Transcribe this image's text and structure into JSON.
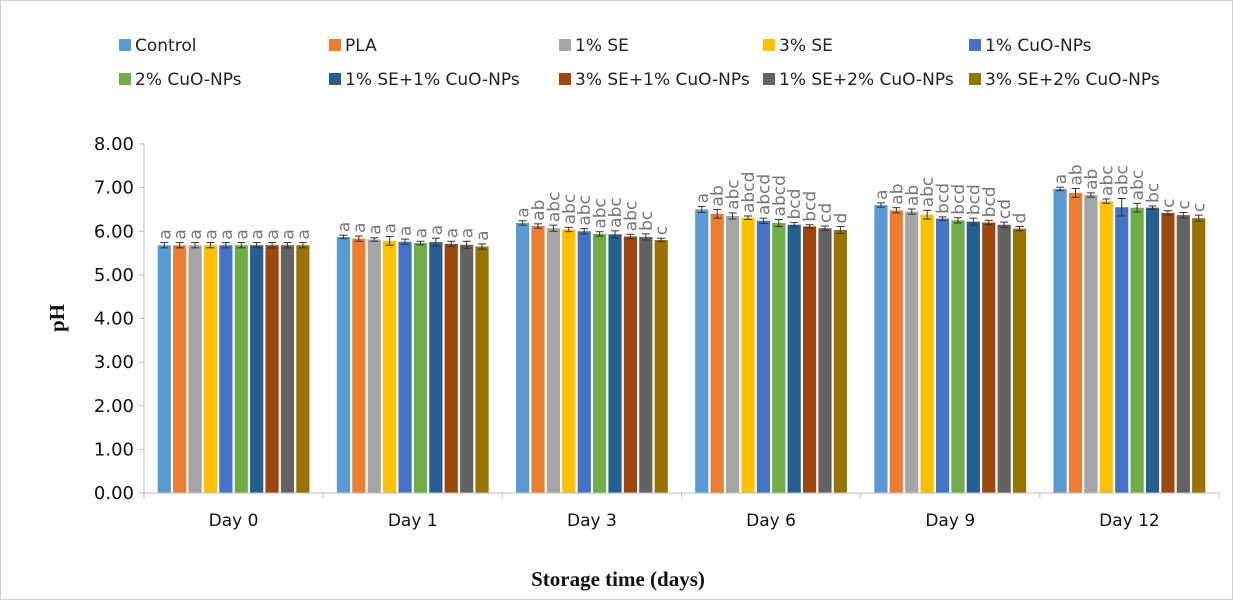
{
  "chart_data": {
    "type": "bar",
    "title": "",
    "xlabel": "Storage time (days)",
    "ylabel": "pH",
    "ylim": [
      0,
      8
    ],
    "yticks": [
      "0.00",
      "1.00",
      "2.00",
      "3.00",
      "4.00",
      "5.00",
      "6.00",
      "7.00",
      "8.00"
    ],
    "categories": [
      "Day 0",
      "Day 1",
      "Day 3",
      "Day 6",
      "Day 9",
      "Day 12"
    ],
    "legend_position": "top",
    "grid": false,
    "series": [
      {
        "name": "Control",
        "color": "#5B9BD5",
        "values": [
          5.68,
          5.87,
          6.19,
          6.5,
          6.6,
          6.97
        ],
        "errors": [
          0.06,
          0.04,
          0.05,
          0.07,
          0.05,
          0.04
        ],
        "letters": [
          "a",
          "a",
          "a",
          "a",
          "a",
          "a"
        ]
      },
      {
        "name": "PLA",
        "color": "#ED7D31",
        "values": [
          5.68,
          5.83,
          6.12,
          6.4,
          6.48,
          6.88
        ],
        "errors": [
          0.06,
          0.06,
          0.05,
          0.1,
          0.06,
          0.1
        ],
        "letters": [
          "a",
          "a",
          "ab",
          "ab",
          "ab",
          "ab"
        ]
      },
      {
        "name": "1% SE",
        "color": "#A5A5A5",
        "values": [
          5.68,
          5.81,
          6.07,
          6.35,
          6.45,
          6.83
        ],
        "errors": [
          0.06,
          0.04,
          0.07,
          0.07,
          0.06,
          0.05
        ],
        "letters": [
          "a",
          "a",
          "abc",
          "abc",
          "ab",
          "ab"
        ]
      },
      {
        "name": "3% SE",
        "color": "#FFC000",
        "values": [
          5.68,
          5.78,
          6.04,
          6.31,
          6.38,
          6.69
        ],
        "errors": [
          0.06,
          0.1,
          0.05,
          0.04,
          0.1,
          0.05
        ],
        "letters": [
          "a",
          "a",
          "abc",
          "abcd",
          "abc",
          "abc"
        ]
      },
      {
        "name": "1% CuO-NPs",
        "color": "#4472C4",
        "values": [
          5.68,
          5.76,
          6.0,
          6.24,
          6.29,
          6.55
        ],
        "errors": [
          0.06,
          0.06,
          0.06,
          0.06,
          0.04,
          0.2
        ],
        "letters": [
          "a",
          "a",
          "abc",
          "abcd",
          "bcd",
          "abc"
        ]
      },
      {
        "name": "2% CuO-NPs",
        "color": "#70AD47",
        "values": [
          5.68,
          5.73,
          5.94,
          6.19,
          6.25,
          6.54
        ],
        "errors": [
          0.06,
          0.04,
          0.05,
          0.08,
          0.06,
          0.1
        ],
        "letters": [
          "a",
          "a",
          "abc",
          "abcd",
          "bcd",
          "abc"
        ]
      },
      {
        "name": "1% SE+1% CuO-NPs",
        "color": "#255E91",
        "values": [
          5.68,
          5.75,
          5.93,
          6.15,
          6.22,
          6.54
        ],
        "errors": [
          0.06,
          0.09,
          0.08,
          0.05,
          0.08,
          0.04
        ],
        "letters": [
          "a",
          "a",
          "abc",
          "bcd",
          "bcd",
          "bc"
        ]
      },
      {
        "name": "3% SE+1% CuO-NPs",
        "color": "#9E480E",
        "values": [
          5.68,
          5.71,
          5.88,
          6.11,
          6.2,
          6.42
        ],
        "errors": [
          0.06,
          0.06,
          0.05,
          0.04,
          0.05,
          0.05
        ],
        "letters": [
          "a",
          "a",
          "abc",
          "bcd",
          "bcd",
          "c"
        ]
      },
      {
        "name": "1% SE+2% CuO-NPs",
        "color": "#636363",
        "values": [
          5.68,
          5.69,
          5.87,
          6.07,
          6.15,
          6.37
        ],
        "errors": [
          0.06,
          0.08,
          0.07,
          0.05,
          0.06,
          0.06
        ],
        "letters": [
          "a",
          "a",
          "bc",
          "cd",
          "cd",
          "c"
        ]
      },
      {
        "name": "3% SE+2% CuO-NPs",
        "color": "#997300",
        "values": [
          5.68,
          5.65,
          5.8,
          6.03,
          6.06,
          6.3
        ],
        "errors": [
          0.06,
          0.06,
          0.04,
          0.08,
          0.05,
          0.07
        ],
        "letters": [
          "a",
          "a",
          "c",
          "d",
          "d",
          "c"
        ]
      }
    ]
  }
}
